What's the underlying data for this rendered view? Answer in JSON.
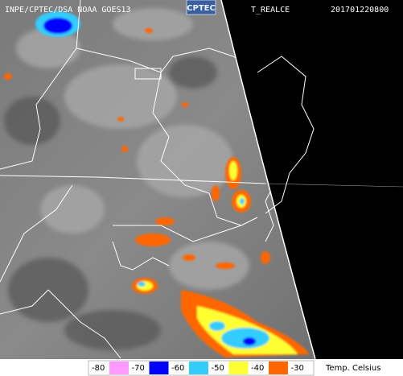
{
  "header": {
    "source": "INPE/CPTEC/DSA NOAA GOES13",
    "logo": "CPTEC",
    "product": "T_REALCE",
    "timestamp": "201701220800"
  },
  "legend": {
    "labels": [
      "-80",
      "-70",
      "-60",
      "-50",
      "-40",
      "-30"
    ],
    "colors": [
      "#ff99ff",
      "#0000ff",
      "#33ccff",
      "#ffff33",
      "#ff6600"
    ],
    "unit": "Temp. Celsius"
  }
}
